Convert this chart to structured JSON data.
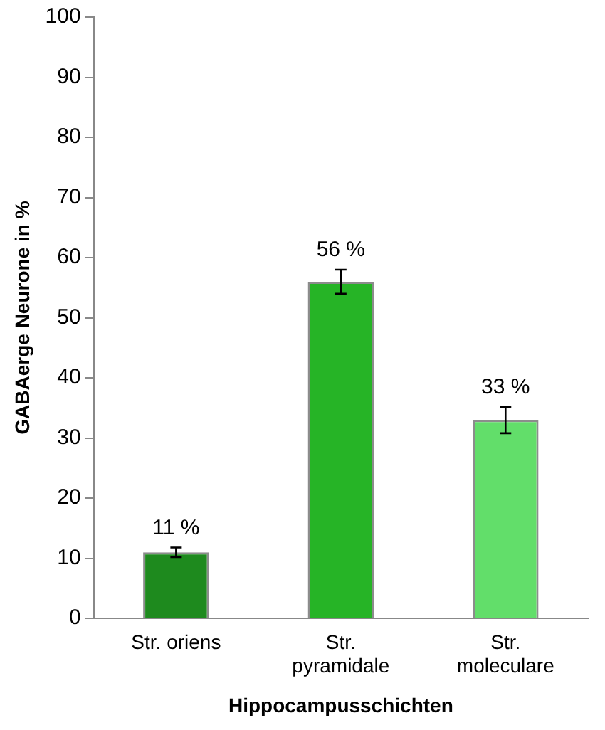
{
  "chart_data": {
    "type": "bar",
    "xlabel": "Hippocampusschichten",
    "ylabel": "GABAerge Neurone in %",
    "categories": [
      "Str. oriens",
      "Str. pyramidale",
      "Str. moleculare"
    ],
    "values": [
      11,
      56,
      33
    ],
    "colors": [
      "#1e8a1e",
      "#26b426",
      "#62de6a"
    ],
    "errors": [
      0.8,
      2,
      2.2
    ],
    "value_labels": [
      "11 %",
      "56 %",
      "33 %"
    ],
    "ylim": [
      0,
      100
    ],
    "yticks": [
      0,
      10,
      20,
      30,
      40,
      50,
      60,
      70,
      80,
      90,
      100
    ],
    "grid": false,
    "legend": false
  }
}
